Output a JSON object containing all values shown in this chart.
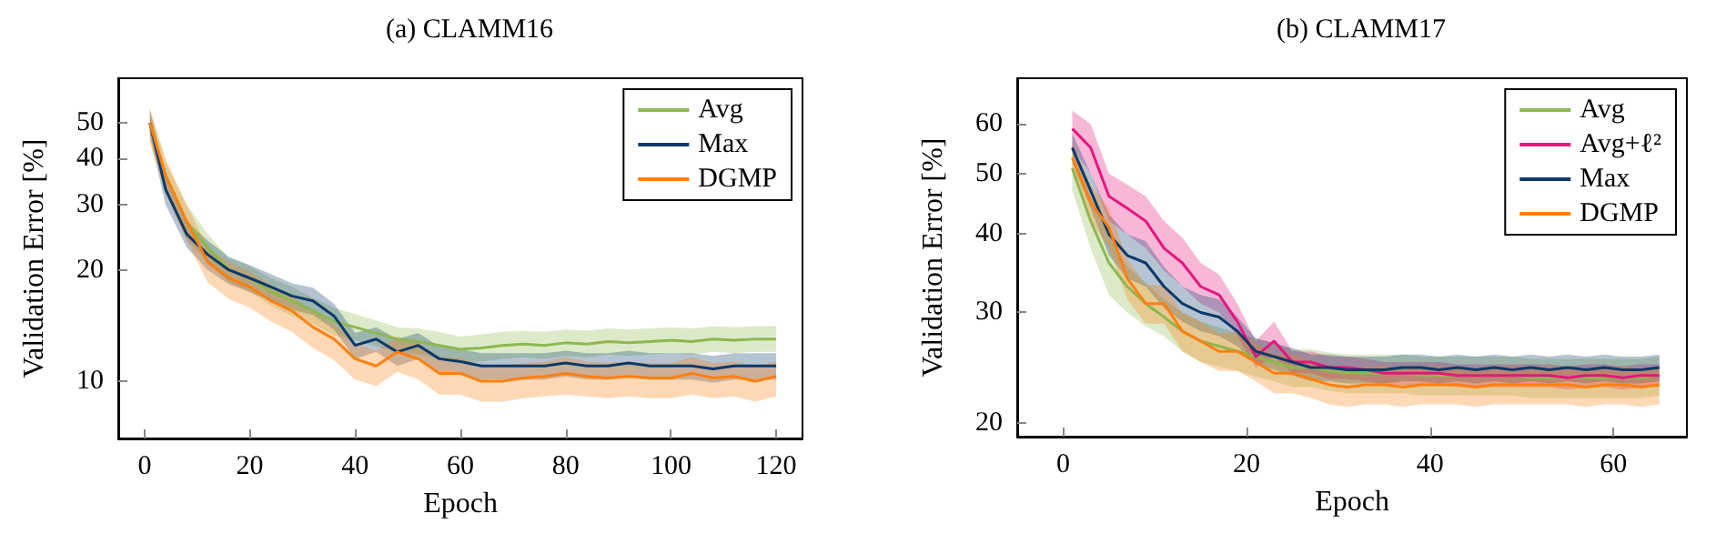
{
  "chart_data": [
    {
      "type": "line",
      "title": "(a) CLAMM16",
      "xlabel": "Epoch",
      "ylabel": "Validation Error [%]",
      "log": "y",
      "xlim": [
        -5,
        125
      ],
      "ylim": [
        7,
        66
      ],
      "xticks": [
        0,
        20,
        40,
        60,
        80,
        100,
        120
      ],
      "yticks": [
        10,
        20,
        30,
        40,
        50
      ],
      "legend": "top right",
      "marker": "none",
      "grid": false,
      "x": [
        1,
        4,
        8,
        12,
        16,
        20,
        24,
        28,
        32,
        36,
        40,
        44,
        48,
        52,
        56,
        60,
        64,
        68,
        72,
        76,
        80,
        84,
        88,
        92,
        96,
        100,
        104,
        108,
        112,
        116,
        120
      ],
      "series": [
        {
          "name": "Avg",
          "color": "#8cb84f",
          "values": [
            50,
            36,
            27,
            23,
            20,
            19,
            17.5,
            16.5,
            15.5,
            14.5,
            14,
            13.5,
            13,
            12.8,
            12.5,
            12.2,
            12.3,
            12.5,
            12.6,
            12.5,
            12.7,
            12.6,
            12.8,
            12.7,
            12.8,
            12.9,
            12.8,
            13,
            12.9,
            13,
            13
          ],
          "lower": [
            46,
            33,
            24,
            21,
            18.5,
            17.5,
            16,
            15,
            14.3,
            13.3,
            12.9,
            12.4,
            12,
            11.8,
            11.5,
            11.2,
            11.3,
            11.5,
            11.6,
            11.5,
            11.7,
            11.6,
            11.8,
            11.7,
            11.8,
            11.9,
            11.8,
            12,
            11.9,
            12,
            12
          ],
          "upper": [
            54,
            39,
            30,
            25,
            21.5,
            20.5,
            19,
            18,
            16.8,
            15.8,
            15.2,
            14.6,
            14,
            13.9,
            13.6,
            13.2,
            13.4,
            13.6,
            13.7,
            13.6,
            13.8,
            13.7,
            13.9,
            13.8,
            13.9,
            14,
            13.9,
            14.1,
            14,
            14.1,
            14.1
          ]
        },
        {
          "name": "Max",
          "color": "#0b3a6b",
          "values": [
            50,
            33,
            25,
            22,
            20,
            19,
            18,
            17,
            16.5,
            15,
            12.5,
            13,
            12,
            12.5,
            11.5,
            11.3,
            11,
            11,
            11,
            11,
            11.2,
            11,
            11,
            11.2,
            11,
            11,
            11,
            10.8,
            11,
            11,
            11
          ],
          "lower": [
            46,
            30,
            23,
            20,
            18.3,
            17.4,
            16.5,
            15.6,
            15.1,
            13.8,
            11.5,
            12,
            11,
            11.5,
            10.6,
            10.4,
            10.1,
            10.1,
            10.1,
            10.1,
            10.3,
            10.1,
            10.1,
            10.3,
            10.1,
            10.1,
            10.1,
            9.9,
            10.1,
            10.1,
            10.1
          ],
          "upper": [
            54,
            36,
            27,
            24,
            21.7,
            20.6,
            19.5,
            18.4,
            17.9,
            16.2,
            13.5,
            14,
            13,
            13.5,
            12.4,
            12.2,
            11.9,
            11.9,
            11.9,
            11.9,
            12.1,
            11.9,
            11.9,
            12.1,
            11.9,
            11.9,
            11.9,
            11.7,
            11.9,
            11.9,
            11.9
          ]
        },
        {
          "name": "DGMP",
          "color": "#ff7f0e",
          "values": [
            50,
            36,
            27,
            21,
            19,
            18,
            16.5,
            15.5,
            14,
            13,
            11.5,
            11,
            12,
            11.5,
            10.5,
            10.5,
            10,
            10,
            10.2,
            10.3,
            10.5,
            10.3,
            10.2,
            10.3,
            10.2,
            10.2,
            10.5,
            10.2,
            10.3,
            10,
            10.3
          ],
          "lower": [
            44,
            32,
            24,
            18.5,
            16.7,
            15.8,
            14.5,
            13.6,
            12.3,
            11.4,
            10.1,
            9.7,
            10.6,
            10.1,
            9.2,
            9.2,
            8.8,
            8.8,
            9,
            9.1,
            9.2,
            9.1,
            9,
            9.1,
            9,
            9,
            9.2,
            9,
            9.1,
            8.8,
            9.1
          ],
          "upper": [
            55,
            40,
            30,
            23,
            21,
            19.8,
            18.2,
            17,
            15.4,
            14.3,
            12.7,
            12.1,
            13.2,
            12.7,
            11.6,
            11.6,
            11,
            11,
            11.2,
            11.3,
            11.6,
            11.3,
            11.2,
            11.3,
            11.2,
            11.2,
            11.6,
            11.2,
            11.3,
            11,
            11.3
          ]
        }
      ]
    },
    {
      "type": "line",
      "title": "(b) CLAMM17",
      "xlabel": "Epoch",
      "ylabel": "Validation Error [%]",
      "log": "y",
      "xlim": [
        -5,
        68
      ],
      "ylim": [
        19,
        71
      ],
      "xticks": [
        0,
        20,
        40,
        60
      ],
      "yticks": [
        20,
        30,
        40,
        50,
        60
      ],
      "legend": "top right",
      "marker": "none",
      "grid": false,
      "x": [
        1,
        3,
        5,
        7,
        9,
        11,
        13,
        15,
        17,
        19,
        21,
        23,
        25,
        27,
        29,
        31,
        33,
        35,
        37,
        39,
        41,
        43,
        45,
        47,
        49,
        51,
        53,
        55,
        57,
        59,
        61,
        63,
        65
      ],
      "series": [
        {
          "name": "Avg",
          "color": "#8cb84f",
          "values": [
            51,
            42,
            36,
            33,
            31,
            29.5,
            28,
            27,
            26.5,
            26,
            25.5,
            25,
            24.5,
            24.5,
            24.2,
            24,
            24,
            24,
            24,
            23.8,
            23.8,
            23.8,
            23.8,
            23.8,
            23.8,
            23.6,
            23.6,
            23.6,
            23.6,
            23.6,
            23.6,
            23.6,
            23.8
          ],
          "lower": [
            47,
            38,
            32,
            30,
            28.5,
            27.5,
            26,
            25,
            24.6,
            24.2,
            23.7,
            23.3,
            22.8,
            22.8,
            22.5,
            22.3,
            22.3,
            22.3,
            22.3,
            22.1,
            22.1,
            22.1,
            22.1,
            22.1,
            22.1,
            21.9,
            21.9,
            21.9,
            21.9,
            21.9,
            21.9,
            21.9,
            22.1
          ],
          "upper": [
            55,
            46,
            40,
            35.5,
            33.5,
            31.5,
            30,
            29,
            28.4,
            27.8,
            27.3,
            26.8,
            26.2,
            26.2,
            25.9,
            25.7,
            25.7,
            25.7,
            25.7,
            25.5,
            25.5,
            25.5,
            25.5,
            25.5,
            25.5,
            25.3,
            25.3,
            25.3,
            25.3,
            25.3,
            25.3,
            25.3,
            25.5
          ]
        },
        {
          "name": "Avg+ℓ²",
          "color": "#e6157f",
          "values": [
            59,
            55,
            46,
            44,
            42,
            38,
            36,
            33,
            32,
            29,
            25.5,
            27,
            25,
            25,
            24.5,
            24.5,
            24.3,
            24,
            24,
            24,
            24,
            23.8,
            23.8,
            23.8,
            23.8,
            23.8,
            23.8,
            23.6,
            23.8,
            23.8,
            23.6,
            23.8,
            23.8
          ],
          "lower": [
            55,
            50,
            42,
            40,
            38,
            35,
            33,
            31,
            30,
            27.5,
            24.5,
            25.5,
            24,
            24,
            23.5,
            23.5,
            23.3,
            23,
            23,
            23,
            23,
            22.8,
            22.8,
            22.8,
            22.8,
            22.8,
            22.8,
            22.6,
            22.8,
            22.8,
            22.6,
            22.8,
            22.8
          ],
          "upper": [
            63,
            60,
            50,
            48,
            46,
            42,
            39.5,
            36,
            34.5,
            31,
            27,
            29,
            26,
            26,
            25.5,
            25.5,
            25.3,
            25,
            25,
            25,
            25,
            24.8,
            24.8,
            24.8,
            24.8,
            24.8,
            24.8,
            24.6,
            24.8,
            24.8,
            24.6,
            24.8,
            24.8
          ]
        },
        {
          "name": "Max",
          "color": "#0b3a6b",
          "values": [
            55,
            47,
            40,
            37,
            36,
            33,
            31,
            30,
            29.5,
            28,
            26,
            25.5,
            25,
            24.5,
            24.5,
            24.3,
            24.3,
            24.3,
            24.5,
            24.5,
            24.3,
            24.5,
            24.3,
            24.5,
            24.3,
            24.5,
            24.3,
            24.5,
            24.3,
            24.5,
            24.3,
            24.3,
            24.5
          ],
          "lower": [
            52,
            44,
            37,
            34,
            33,
            30.5,
            29,
            28,
            27.5,
            26.5,
            24.8,
            24.3,
            23.8,
            23.3,
            23.3,
            23.1,
            23.1,
            23.1,
            23.3,
            23.3,
            23.1,
            23.3,
            23.1,
            23.3,
            23.1,
            23.3,
            23.1,
            23.3,
            23.1,
            23.3,
            23.1,
            23.1,
            23.3
          ],
          "upper": [
            58,
            50,
            43,
            40,
            39,
            35.5,
            33,
            32,
            31.5,
            29.5,
            27.3,
            26.8,
            26.3,
            25.7,
            25.7,
            25.5,
            25.5,
            25.5,
            25.7,
            25.7,
            25.5,
            25.7,
            25.5,
            25.7,
            25.5,
            25.7,
            25.5,
            25.7,
            25.5,
            25.7,
            25.5,
            25.5,
            25.7
          ]
        },
        {
          "name": "DGMP",
          "color": "#ff7f0e",
          "values": [
            53,
            45,
            41,
            34,
            31,
            31,
            28,
            27,
            26,
            26,
            25,
            24,
            24,
            23.5,
            23,
            22.8,
            23,
            23,
            22.8,
            23,
            23,
            23,
            22.8,
            23,
            23,
            23,
            23,
            23,
            22.8,
            23,
            23,
            22.8,
            23
          ],
          "lower": [
            50,
            42,
            38,
            31.5,
            28.8,
            28.8,
            26,
            25,
            24.2,
            24.2,
            23.3,
            22.3,
            22.3,
            21.9,
            21.4,
            21.2,
            21.4,
            21.4,
            21.2,
            21.4,
            21.4,
            21.4,
            21.2,
            21.4,
            21.4,
            21.4,
            21.4,
            21.4,
            21.2,
            21.4,
            21.4,
            21.2,
            21.4
          ],
          "upper": [
            56,
            48,
            44,
            36.5,
            33.2,
            33.2,
            30,
            29,
            27.8,
            27.8,
            26.8,
            25.7,
            25.7,
            25.1,
            24.6,
            24.4,
            24.6,
            24.6,
            24.4,
            24.6,
            24.6,
            24.6,
            24.4,
            24.6,
            24.6,
            24.6,
            24.6,
            24.6,
            24.4,
            24.6,
            24.6,
            24.4,
            24.6
          ]
        }
      ]
    }
  ]
}
